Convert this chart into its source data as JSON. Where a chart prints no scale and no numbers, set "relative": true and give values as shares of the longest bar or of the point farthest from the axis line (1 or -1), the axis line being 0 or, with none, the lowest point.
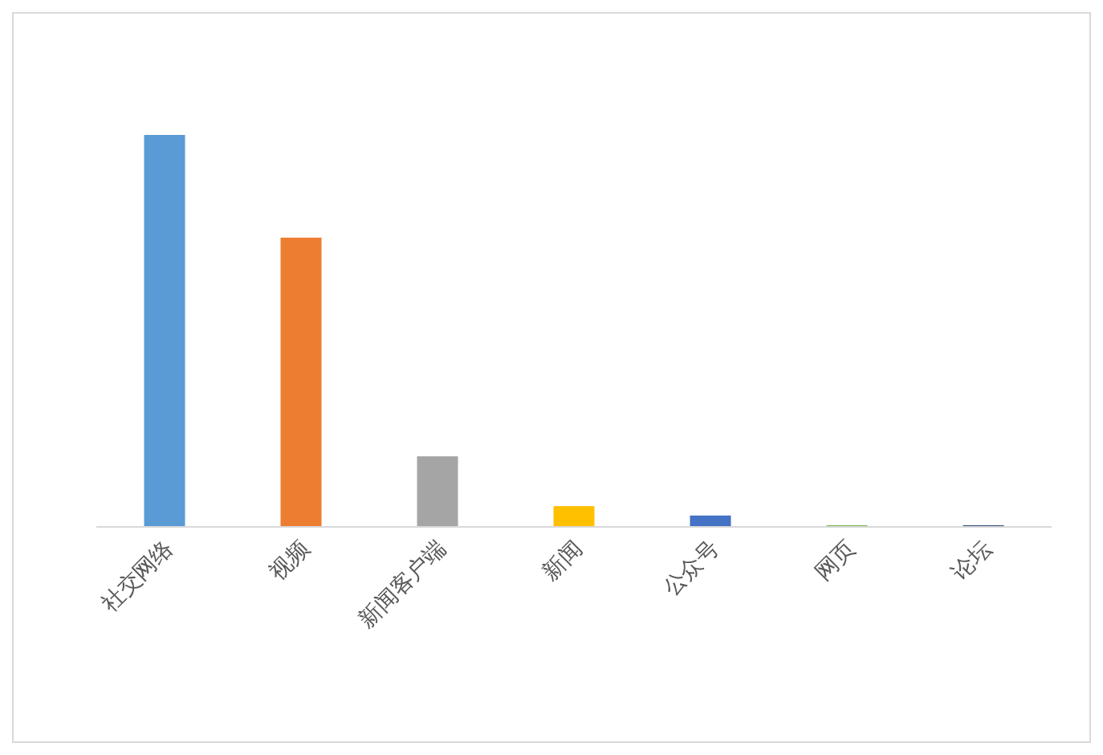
{
  "chart_data": {
    "type": "bar",
    "relative": true,
    "categories": [
      "社交网络",
      "视频",
      "新闻客户端",
      "新闻",
      "公众号",
      "网页",
      "论坛"
    ],
    "values": [
      1,
      0.738,
      0.18,
      0.053,
      0.029,
      0.004,
      0.004
    ],
    "colors": [
      "#5b9bd5",
      "#ed7d31",
      "#a5a5a5",
      "#ffc000",
      "#4472c4",
      "#70ad47",
      "#264478"
    ]
  }
}
